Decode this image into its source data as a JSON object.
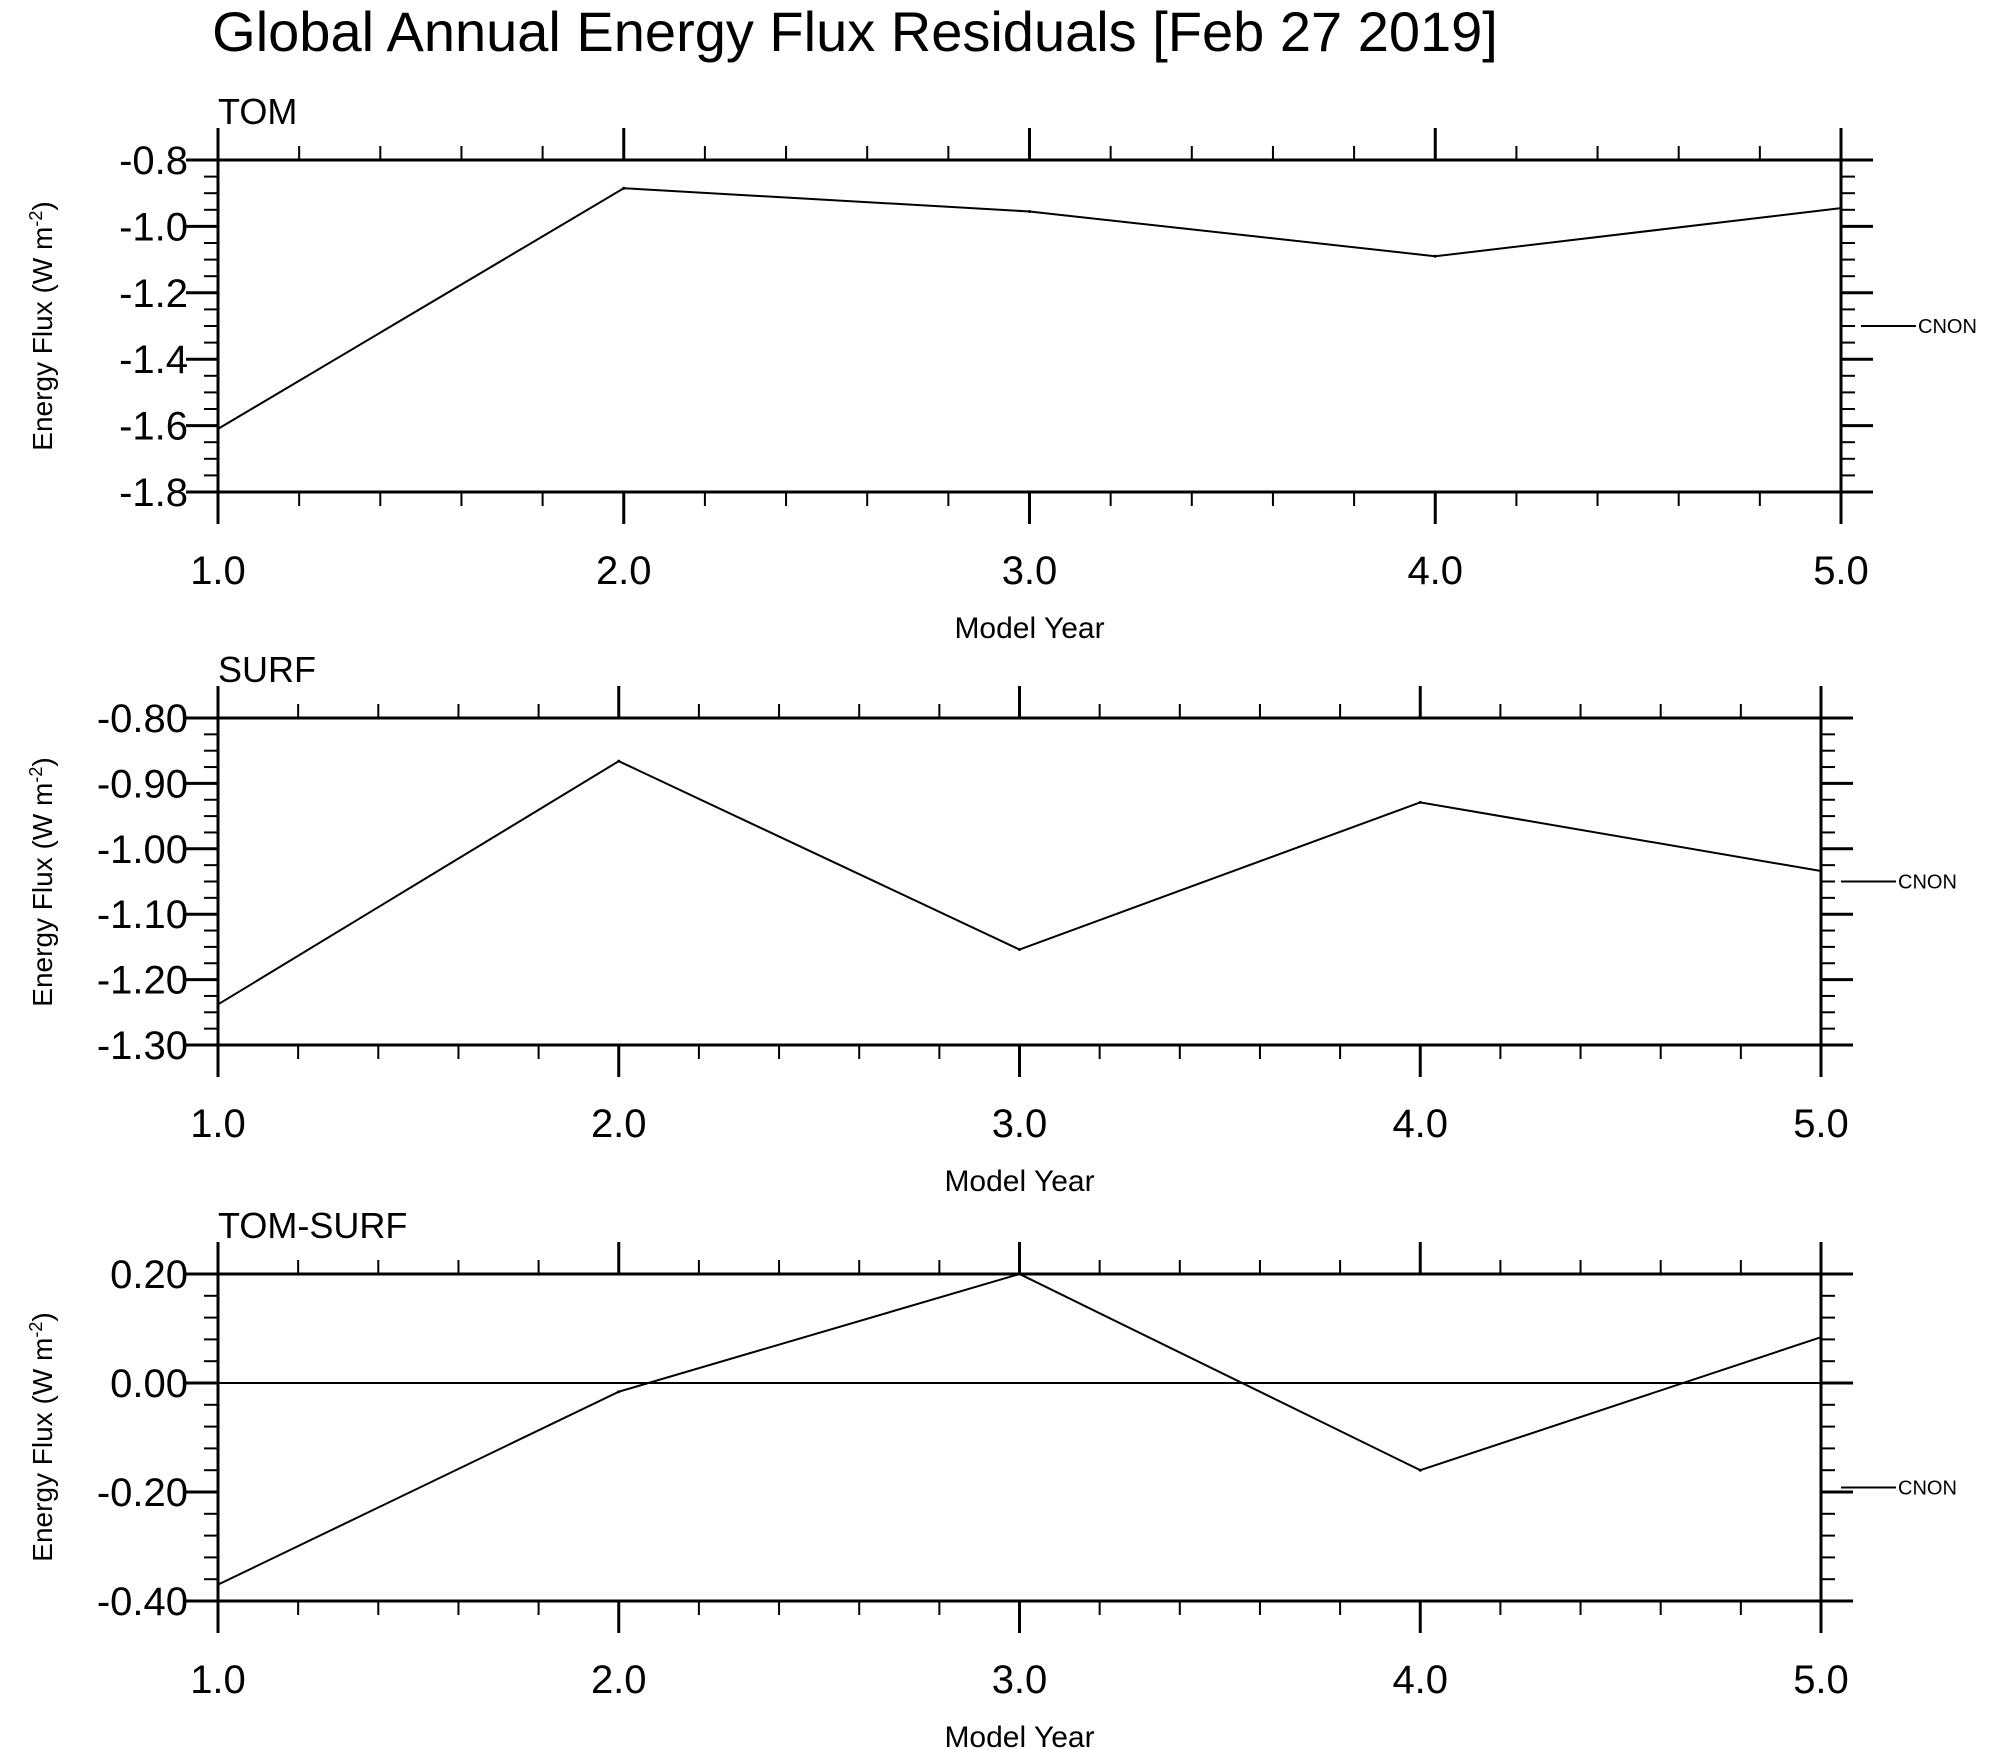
{
  "title": "Global Annual Energy Flux Residuals [Feb 27 2019]",
  "chart_data": [
    {
      "type": "line",
      "panel_label": "TOM",
      "xlabel": "Model Year",
      "ylabel": "Energy Flux (W m",
      "ylabel_sup": "-2",
      "ylabel_end": ")",
      "x": [
        1.0,
        2.0,
        3.0,
        4.0,
        5.0
      ],
      "xlim": [
        1.0,
        5.0
      ],
      "xticks": [
        1.0,
        2.0,
        3.0,
        4.0,
        5.0
      ],
      "xtick_labels": [
        "1.0",
        "2.0",
        "3.0",
        "4.0",
        "5.0"
      ],
      "ylim": [
        -1.8,
        -0.8
      ],
      "yticks": [
        -1.8,
        -1.6,
        -1.4,
        -1.2,
        -1.0,
        -0.8
      ],
      "ytick_labels": [
        "-1.8",
        "-1.6",
        "-1.4",
        "-1.2",
        "-1.0",
        "-0.8"
      ],
      "zero_line": false,
      "series": [
        {
          "name": "CNON",
          "values": [
            -1.61,
            -0.885,
            -0.955,
            -1.09,
            -0.945
          ]
        }
      ]
    },
    {
      "type": "line",
      "panel_label": "SURF",
      "xlabel": "Model Year",
      "ylabel": "Energy Flux (W m",
      "ylabel_sup": "-2",
      "ylabel_end": ")",
      "x": [
        1.0,
        2.0,
        3.0,
        4.0,
        5.0
      ],
      "xlim": [
        1.0,
        5.0
      ],
      "xticks": [
        1.0,
        2.0,
        3.0,
        4.0,
        5.0
      ],
      "xtick_labels": [
        "1.0",
        "2.0",
        "3.0",
        "4.0",
        "5.0"
      ],
      "ylim": [
        -1.3,
        -0.8
      ],
      "yticks": [
        -1.3,
        -1.2,
        -1.1,
        -1.0,
        -0.9,
        -0.8
      ],
      "ytick_labels": [
        "-1.30",
        "-1.20",
        "-1.10",
        "-1.00",
        "-0.90",
        "-0.80"
      ],
      "zero_line": false,
      "series": [
        {
          "name": "CNON",
          "values": [
            -1.238,
            -0.866,
            -1.154,
            -0.929,
            -1.034
          ]
        }
      ]
    },
    {
      "type": "line",
      "panel_label": "TOM-SURF",
      "xlabel": "Model Year",
      "ylabel": "Energy Flux (W m",
      "ylabel_sup": "-2",
      "ylabel_end": ")",
      "x": [
        1.0,
        2.0,
        3.0,
        4.0,
        5.0
      ],
      "xlim": [
        1.0,
        5.0
      ],
      "xticks": [
        1.0,
        2.0,
        3.0,
        4.0,
        5.0
      ],
      "xtick_labels": [
        "1.0",
        "2.0",
        "3.0",
        "4.0",
        "5.0"
      ],
      "ylim": [
        -0.4,
        0.2
      ],
      "yticks": [
        -0.4,
        -0.2,
        0.0,
        0.2
      ],
      "ytick_labels": [
        "-0.40",
        "-0.20",
        "0.00",
        "0.20"
      ],
      "zero_line": true,
      "series": [
        {
          "name": "CNON",
          "values": [
            -0.37,
            -0.016,
            0.2,
            -0.16,
            0.084
          ]
        }
      ]
    }
  ]
}
